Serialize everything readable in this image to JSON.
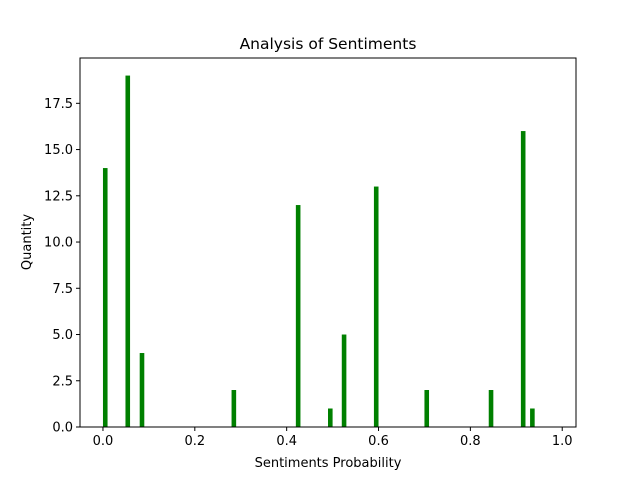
{
  "chart_data": {
    "type": "bar",
    "title": "Analysis of Sentiments",
    "xlabel": "Sentiments Probability",
    "ylabel": "Quantity",
    "xlim": [
      -0.05,
      1.03
    ],
    "ylim": [
      0,
      19.95
    ],
    "xticks": [
      0.0,
      0.2,
      0.4,
      0.6,
      0.8,
      1.0
    ],
    "xtick_labels": [
      "0.0",
      "0.2",
      "0.4",
      "0.6",
      "0.8",
      "1.0"
    ],
    "yticks": [
      0.0,
      2.5,
      5.0,
      7.5,
      10.0,
      12.5,
      15.0,
      17.5
    ],
    "ytick_labels": [
      "0.0",
      "2.5",
      "5.0",
      "7.5",
      "10.0",
      "12.5",
      "15.0",
      "17.5"
    ],
    "bar_width": 0.01,
    "bar_color": "#008000",
    "grid": false,
    "legend": "none",
    "x": [
      0.005,
      0.054,
      0.085,
      0.285,
      0.425,
      0.495,
      0.525,
      0.595,
      0.705,
      0.845,
      0.915,
      0.935
    ],
    "values": [
      14,
      19,
      4,
      2,
      12,
      1,
      5,
      13,
      2,
      2,
      16,
      1
    ]
  }
}
